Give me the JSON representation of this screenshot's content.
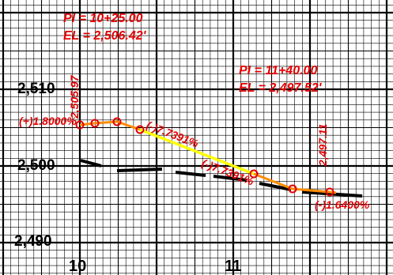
{
  "profile": {
    "elevation_labels": [
      "2,510",
      "2,500",
      "2,490"
    ],
    "station_labels": [
      "10",
      "11"
    ],
    "pvi_1": {
      "pi_text": "PI = 10+25.00",
      "el_text": "EL = 2,506.42'",
      "vertical_elev_text": "2,505.97"
    },
    "pvi_2": {
      "pi_text": "PI = 11+40.00",
      "el_text": "EL = 2,497.52'",
      "vertical_elev_text": "2,497.11"
    },
    "grades": {
      "g1": "(+)1.8000%",
      "g2": "(-)7.7391%",
      "g2_repeat": "(-)7.7391%",
      "g3": "(-)1.6400%"
    },
    "colors": {
      "grid": "#000000",
      "annotation": "#e30000",
      "proposed_line": "#ff8c00",
      "highlight_segment": "#ffff00",
      "ground_line": "#000000"
    }
  }
}
